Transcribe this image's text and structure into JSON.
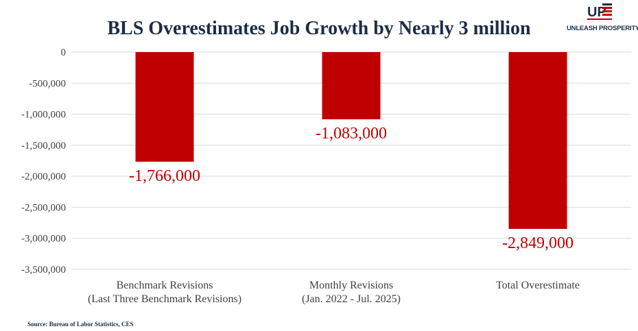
{
  "header": {
    "title": "BLS Overestimates Job Growth by Nearly 3 million"
  },
  "logo": {
    "text": "UNLEASH PROSPERITY",
    "colors": {
      "navy": "#1c2d45",
      "red": "#c00000"
    }
  },
  "source": "Source: Bureau of Labor Statistics, CES",
  "colors": {
    "bar": "#c00000",
    "label": "#c00000",
    "grid": "#d9d9d9",
    "axis_text": "#404040"
  },
  "chart_data": {
    "type": "bar",
    "title": "BLS Overestimates Job Growth by Nearly 3 million",
    "categories": [
      [
        "Benchmark Revisions",
        "(Last Three Benchmark Revisions)"
      ],
      [
        "Monthly Revisions",
        "(Jan. 2022 - Jul. 2025)"
      ],
      [
        "Total Overestimate"
      ]
    ],
    "values": [
      -1766000,
      -1083000,
      -2849000
    ],
    "data_labels": [
      "-1,766,000",
      "-1,083,000",
      "-2,849,000"
    ],
    "ylim": [
      -3500000,
      0
    ],
    "yticks": [
      0,
      -500000,
      -1000000,
      -1500000,
      -2000000,
      -2500000,
      -3000000,
      -3500000
    ],
    "ytick_labels": [
      "0",
      "-500,000",
      "-1,000,000",
      "-1,500,000",
      "-2,000,000",
      "-2,500,000",
      "-3,000,000",
      "-3,500,000"
    ],
    "grid": true,
    "legend": "none",
    "xlabel": "",
    "ylabel": ""
  }
}
